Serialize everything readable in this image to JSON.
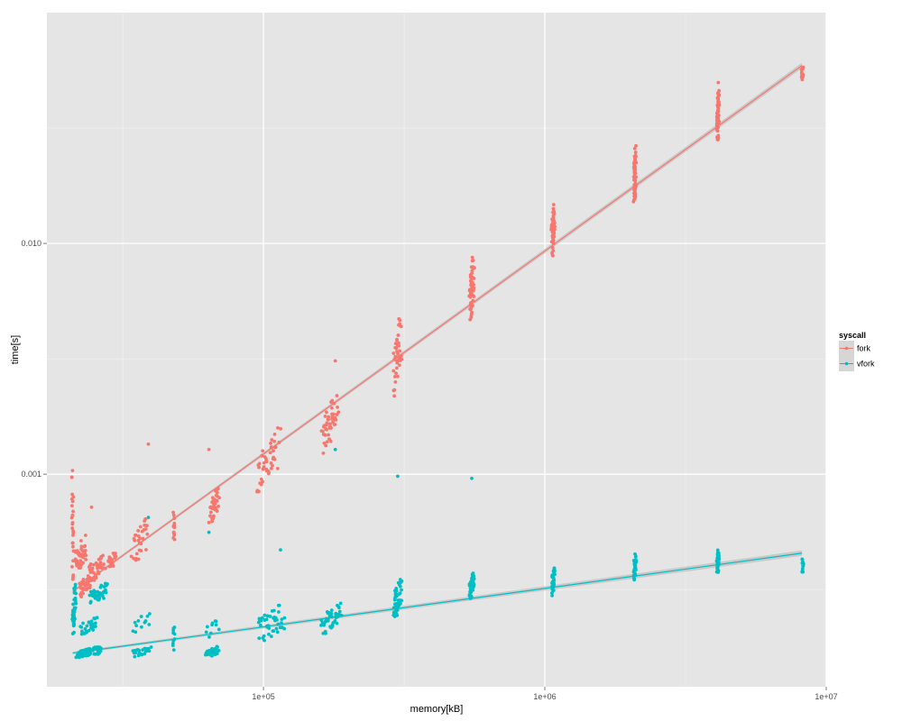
{
  "chart_data": {
    "type": "scatter",
    "title": "",
    "xlabel": "memory[kB]",
    "ylabel": "time[s]",
    "x_scale": "log10",
    "y_scale": "log10",
    "xlim": [
      17000,
      10000000
    ],
    "ylim": [
      0.00012,
      0.1
    ],
    "x_ticks": [
      {
        "value": 100000,
        "label": "1e+05"
      },
      {
        "value": 1000000,
        "label": "1e+06"
      },
      {
        "value": 10000000,
        "label": "1e+07"
      }
    ],
    "y_ticks": [
      {
        "value": 0.001,
        "label": "0.001"
      },
      {
        "value": 0.01,
        "label": "0.010"
      }
    ],
    "grid": true,
    "legend": {
      "title": "syscall",
      "placement": "right",
      "entries": [
        "fork",
        "vfork"
      ]
    },
    "series": [
      {
        "name": "fork",
        "color": "#F8766D",
        "fit": {
          "x": [
            21000,
            8200000
          ],
          "y": [
            0.00031,
            0.059
          ]
        },
        "clusters": [
          {
            "x": [
              21000,
              21000
            ],
            "y": [
              0.00026,
              0.0015
            ],
            "n": 30
          },
          {
            "x": [
              21300,
              23500
            ],
            "y": [
              0.00036,
              0.00055
            ],
            "n": 45
          },
          {
            "x": [
              22000,
              24500
            ],
            "y": [
              0.00029,
              0.00038
            ],
            "n": 40
          },
          {
            "x": [
              23500,
              27500
            ],
            "y": [
              0.00033,
              0.00046
            ],
            "n": 40
          },
          {
            "x": [
              28000,
              30000
            ],
            "y": [
              0.00038,
              0.00047
            ],
            "n": 20
          },
          {
            "x": [
              34000,
              39000
            ],
            "y": [
              0.0004,
              0.00066
            ],
            "n": 30
          },
          {
            "x": [
              48000,
              48000
            ],
            "y": [
              0.0005,
              0.0007
            ],
            "n": 16
          },
          {
            "x": [
              64000,
              70000
            ],
            "y": [
              0.0006,
              0.0009
            ],
            "n": 35
          },
          {
            "x": [
              94000,
              115000
            ],
            "y": [
              0.00082,
              0.0016
            ],
            "n": 45
          },
          {
            "x": [
              160000,
              185000
            ],
            "y": [
              0.0012,
              0.0023
            ],
            "n": 45
          },
          {
            "x": [
              290000,
              310000
            ],
            "y": [
              0.002,
              0.0052
            ],
            "n": 40
          },
          {
            "x": [
              540000,
              560000
            ],
            "y": [
              0.0045,
              0.0092
            ],
            "n": 60
          },
          {
            "x": [
              1060000,
              1080000
            ],
            "y": [
              0.0085,
              0.0152
            ],
            "n": 60
          },
          {
            "x": [
              2080000,
              2100000
            ],
            "y": [
              0.0145,
              0.027
            ],
            "n": 60
          },
          {
            "x": [
              4100000,
              4150000
            ],
            "y": [
              0.027,
              0.05
            ],
            "n": 70
          },
          {
            "x": [
              8200000,
              8250000
            ],
            "y": [
              0.05,
              0.06
            ],
            "n": 14
          }
        ],
        "points": [
          {
            "x": 39000,
            "y": 0.00135
          },
          {
            "x": 64000,
            "y": 0.00128
          },
          {
            "x": 24500,
            "y": 0.00072
          },
          {
            "x": 180000,
            "y": 0.0031
          }
        ]
      },
      {
        "name": "vfork",
        "color": "#00BFC4",
        "fit": {
          "x": [
            21000,
            8200000
          ],
          "y": [
            0.000168,
            0.000455
          ]
        },
        "clusters": [
          {
            "x": [
              21000,
              21500
            ],
            "y": [
              0.00019,
              0.00034
            ],
            "n": 40
          },
          {
            "x": [
              21500,
              27000
            ],
            "y": [
              0.00016,
              0.00018
            ],
            "n": 60
          },
          {
            "x": [
              22000,
              26000
            ],
            "y": [
              0.0002,
              0.00024
            ],
            "n": 30
          },
          {
            "x": [
              24000,
              28000
            ],
            "y": [
              0.00027,
              0.00034
            ],
            "n": 40
          },
          {
            "x": [
              34000,
              40000
            ],
            "y": [
              0.00016,
              0.00018
            ],
            "n": 25
          },
          {
            "x": [
              34000,
              40000
            ],
            "y": [
              0.00019,
              0.00026
            ],
            "n": 12
          },
          {
            "x": [
              48000,
              48000
            ],
            "y": [
              0.00016,
              0.00023
            ],
            "n": 10
          },
          {
            "x": [
              62000,
              70000
            ],
            "y": [
              0.00016,
              0.00018
            ],
            "n": 30
          },
          {
            "x": [
              62000,
              70000
            ],
            "y": [
              0.00019,
              0.00024
            ],
            "n": 10
          },
          {
            "x": [
              94000,
              120000
            ],
            "y": [
              0.00018,
              0.00028
            ],
            "n": 45
          },
          {
            "x": [
              160000,
              190000
            ],
            "y": [
              0.0002,
              0.00028
            ],
            "n": 45
          },
          {
            "x": [
              290000,
              310000
            ],
            "y": [
              0.00023,
              0.00036
            ],
            "n": 50
          },
          {
            "x": [
              540000,
              560000
            ],
            "y": [
              0.00028,
              0.00038
            ],
            "n": 50
          },
          {
            "x": [
              1060000,
              1080000
            ],
            "y": [
              0.00029,
              0.00042
            ],
            "n": 40
          },
          {
            "x": [
              2080000,
              2100000
            ],
            "y": [
              0.00034,
              0.00046
            ],
            "n": 40
          },
          {
            "x": [
              4100000,
              4150000
            ],
            "y": [
              0.00037,
              0.00047
            ],
            "n": 40
          },
          {
            "x": [
              8200000,
              8250000
            ],
            "y": [
              0.00036,
              0.00046
            ],
            "n": 12
          }
        ],
        "points": [
          {
            "x": 300000,
            "y": 0.00098
          },
          {
            "x": 550000,
            "y": 0.00096
          },
          {
            "x": 180000,
            "y": 0.00128
          },
          {
            "x": 64000,
            "y": 0.00056
          },
          {
            "x": 115000,
            "y": 0.00047
          },
          {
            "x": 39000,
            "y": 0.00065
          }
        ]
      }
    ]
  }
}
